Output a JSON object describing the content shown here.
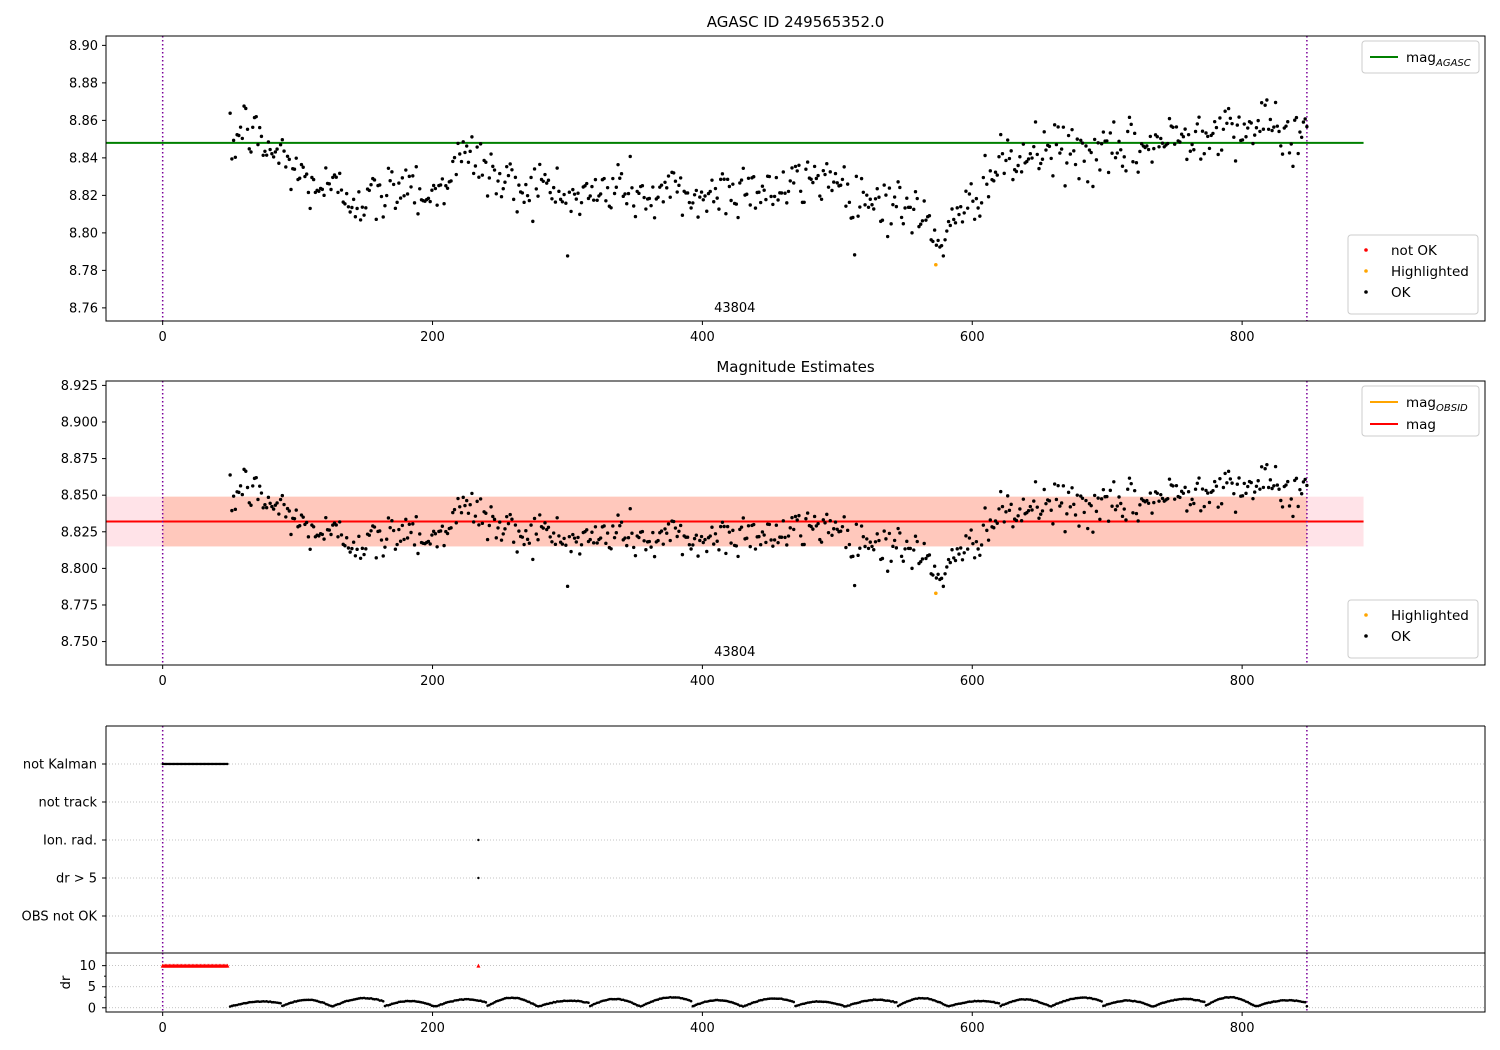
{
  "chart_data": [
    {
      "id": "agasc-panel",
      "type": "scatter",
      "title": "AGASC ID 249565352.0",
      "annotation": "43804",
      "xlim": [
        -42,
        980
      ],
      "ylim": [
        8.753,
        8.905
      ],
      "xticks": [
        0,
        200,
        400,
        600,
        800
      ],
      "yticks": [
        8.76,
        8.78,
        8.8,
        8.82,
        8.84,
        8.86,
        8.88,
        8.9
      ],
      "ytick_decimals": 2,
      "vlines": [
        0,
        848
      ],
      "hlines": [
        {
          "name": "mag",
          "subscript": "AGASC",
          "value": 8.848,
          "x": [
            -42,
            890
          ],
          "color": "#008000"
        }
      ],
      "line_legend": [
        {
          "name": "mag",
          "subscript": "AGASC",
          "color": "#008000"
        }
      ],
      "point_legend": [
        {
          "name": "not OK",
          "color": "#ff0000"
        },
        {
          "name": "Highlighted",
          "color": "#ffa500"
        },
        {
          "name": "OK",
          "color": "#000000"
        }
      ],
      "series_profile": {
        "x": [
          50,
          60,
          75,
          90,
          105,
          120,
          140,
          160,
          180,
          200,
          215,
          230,
          245,
          260,
          280,
          300,
          320,
          340,
          360,
          380,
          400,
          420,
          440,
          460,
          480,
          495,
          510,
          530,
          550,
          565,
          575,
          590,
          605,
          620,
          640,
          660,
          680,
          700,
          720,
          740,
          760,
          780,
          800,
          820,
          845
        ],
        "y": [
          8.843,
          8.858,
          8.846,
          8.84,
          8.828,
          8.824,
          8.82,
          8.817,
          8.83,
          8.818,
          8.836,
          8.842,
          8.83,
          8.824,
          8.826,
          8.818,
          8.82,
          8.826,
          8.818,
          8.822,
          8.818,
          8.824,
          8.825,
          8.822,
          8.828,
          8.832,
          8.82,
          8.818,
          8.814,
          8.806,
          8.798,
          8.803,
          8.826,
          8.834,
          8.84,
          8.845,
          8.842,
          8.84,
          8.845,
          8.848,
          8.852,
          8.858,
          8.857,
          8.855,
          8.852
        ],
        "x_range": [
          50,
          848
        ],
        "count": 620,
        "scatter": 0.0075
      },
      "highlighted_points": [
        {
          "x": 573,
          "y": 8.783
        }
      ]
    },
    {
      "id": "estimates-panel",
      "type": "scatter",
      "title": "Magnitude Estimates",
      "annotation": "43804",
      "xlim": [
        -42,
        980
      ],
      "ylim": [
        8.734,
        8.928
      ],
      "xticks": [
        0,
        200,
        400,
        600,
        800
      ],
      "yticks": [
        8.75,
        8.775,
        8.8,
        8.825,
        8.85,
        8.875,
        8.9,
        8.925
      ],
      "ytick_decimals": 3,
      "vlines": [
        0,
        848
      ],
      "bands": [
        {
          "y": [
            8.815,
            8.849
          ],
          "x": [
            -42,
            890
          ],
          "color": "#ffc0cb",
          "opacity": 0.45
        },
        {
          "y": [
            8.815,
            8.849
          ],
          "x": [
            0,
            848
          ],
          "color": "#ffa07a",
          "opacity": 0.4
        }
      ],
      "hlines": [
        {
          "name": "mag",
          "value": 8.832,
          "x": [
            -42,
            890
          ],
          "color": "#ff0000"
        }
      ],
      "line_legend": [
        {
          "name": "mag",
          "subscript": "OBSID",
          "color": "#ffa500"
        },
        {
          "name": "mag",
          "color": "#ff0000"
        }
      ],
      "point_legend": [
        {
          "name": "Highlighted",
          "color": "#ffa500"
        },
        {
          "name": "OK",
          "color": "#000000"
        }
      ],
      "highlighted_points": [
        {
          "x": 573,
          "y": 8.783
        }
      ]
    },
    {
      "id": "flags-panel",
      "type": "scatter",
      "xlim": [
        -42,
        980
      ],
      "vlines": [
        0,
        848
      ],
      "categories": [
        "not Kalman",
        "not track",
        "Ion. rad.",
        "dr > 5",
        "OBS not OK"
      ],
      "flag_points": [
        {
          "category": "not Kalman",
          "x_range": [
            0,
            48
          ],
          "count": 49
        },
        {
          "category": "Ion. rad.",
          "x": [
            234
          ]
        },
        {
          "category": "dr > 5",
          "x": [
            234
          ]
        }
      ]
    },
    {
      "id": "dr-panel",
      "type": "scatter",
      "ylabel": "dr",
      "xlim": [
        -42,
        980
      ],
      "ylim": [
        -1,
        13
      ],
      "xticks": [
        0,
        200,
        400,
        600,
        800
      ],
      "yticks": [
        0,
        5,
        10
      ],
      "vlines": [
        0,
        848
      ],
      "clipped_points": [
        {
          "x_range": [
            0,
            48
          ],
          "count": 49,
          "y": 10,
          "color": "#ff0000"
        },
        {
          "x": [
            234
          ],
          "y": 10,
          "color": "#ff0000"
        }
      ],
      "dr_profile": {
        "x_range": [
          50,
          848
        ],
        "count": 620,
        "ymin": 0.3,
        "ymax": 2.6
      }
    }
  ]
}
